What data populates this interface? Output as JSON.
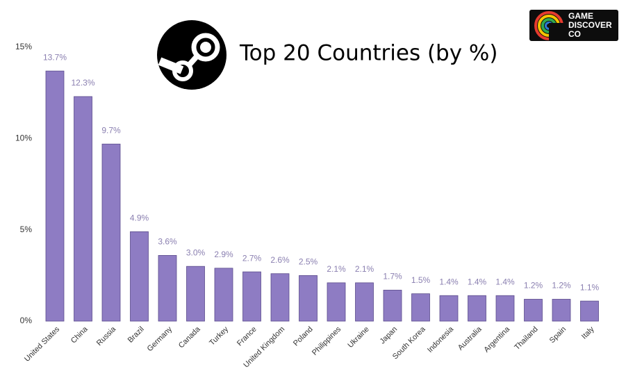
{
  "chart_data": {
    "type": "bar",
    "title": "Top 20 Countries (by %)",
    "categories": [
      "United States",
      "China",
      "Russia",
      "Brazil",
      "Germany",
      "Canada",
      "Turkey",
      "France",
      "United Kingdom",
      "Poland",
      "Philippines",
      "Ukraine",
      "Japan",
      "South Korea",
      "Indonesia",
      "Australia",
      "Argentina",
      "Thailand",
      "Spain",
      "Italy"
    ],
    "values": [
      13.7,
      12.3,
      9.7,
      4.9,
      3.6,
      3.0,
      2.9,
      2.7,
      2.6,
      2.5,
      2.1,
      2.1,
      1.7,
      1.5,
      1.4,
      1.4,
      1.4,
      1.2,
      1.2,
      1.1
    ],
    "value_labels": [
      "13.7%",
      "12.3%",
      "9.7%",
      "4.9%",
      "3.6%",
      "3.0%",
      "2.9%",
      "2.7%",
      "2.6%",
      "2.5%",
      "2.1%",
      "2.1%",
      "1.7%",
      "1.5%",
      "1.4%",
      "1.4%",
      "1.4%",
      "1.2%",
      "1.2%",
      "1.1%"
    ],
    "color": "#8e7cc3",
    "ylim": [
      0,
      15
    ],
    "yticks": [
      {
        "value": 0,
        "label": "0%"
      },
      {
        "value": 5,
        "label": "5%"
      },
      {
        "value": 10,
        "label": "10%"
      },
      {
        "value": 15,
        "label": "15%"
      }
    ],
    "grid": false
  },
  "logo_text": [
    "GAME",
    "DISCOVER",
    "CO"
  ]
}
